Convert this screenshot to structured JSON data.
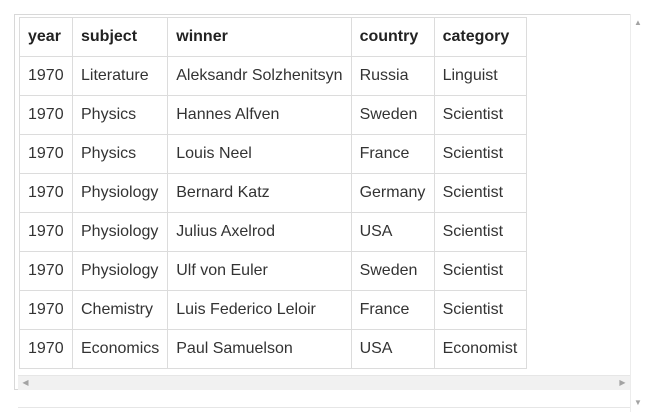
{
  "table": {
    "columns": [
      "year",
      "subject",
      "winner",
      "country",
      "category"
    ],
    "rows": [
      [
        "1970",
        "Literature",
        "Aleksandr Solzhenitsyn",
        "Russia",
        "Linguist"
      ],
      [
        "1970",
        "Physics",
        "Hannes Alfven",
        "Sweden",
        "Scientist"
      ],
      [
        "1970",
        "Physics",
        "Louis Neel",
        "France",
        "Scientist"
      ],
      [
        "1970",
        "Physiology",
        "Bernard Katz",
        "Germany",
        "Scientist"
      ],
      [
        "1970",
        "Physiology",
        "Julius Axelrod",
        "USA",
        "Scientist"
      ],
      [
        "1970",
        "Physiology",
        "Ulf von Euler",
        "Sweden",
        "Scientist"
      ],
      [
        "1970",
        "Chemistry",
        "Luis Federico Leloir",
        "France",
        "Scientist"
      ],
      [
        "1970",
        "Economics",
        "Paul Samuelson",
        "USA",
        "Economist"
      ]
    ]
  },
  "scrollbars": {
    "left_arrow": "◀",
    "right_arrow": "▶",
    "up_arrow": "▲",
    "down_arrow": "▼"
  }
}
